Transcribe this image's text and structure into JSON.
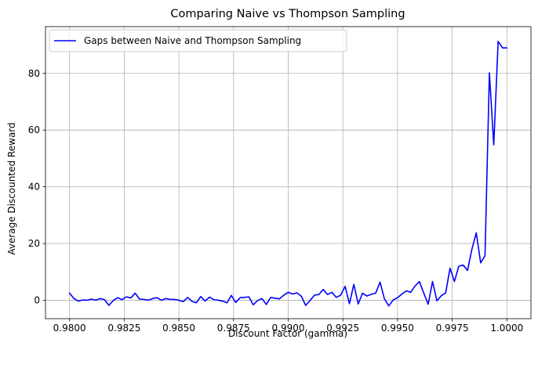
{
  "chart_data": {
    "type": "line",
    "title": "Comparing Naive vs Thompson Sampling",
    "xlabel": "Discount Factor (gamma)",
    "ylabel": "Average Discounted Reward",
    "xlim": [
      0.9789,
      1.0011
    ],
    "ylim": [
      -6.5,
      96.5
    ],
    "xticks": [
      0.98,
      0.9825,
      0.985,
      0.9875,
      0.99,
      0.9925,
      0.995,
      0.9975,
      1.0
    ],
    "xtick_labels": [
      "0.9800",
      "0.9825",
      "0.9850",
      "0.9875",
      "0.9900",
      "0.9925",
      "0.9950",
      "0.9975",
      "1.0000"
    ],
    "yticks": [
      0,
      20,
      40,
      60,
      80
    ],
    "ytick_labels": [
      "0",
      "20",
      "40",
      "60",
      "80"
    ],
    "grid": true,
    "legend_position": "top-left",
    "series": [
      {
        "name": "Gaps between Naive and Thompson Sampling",
        "color": "#0000ff",
        "x": [
          0.98,
          0.9802,
          0.9804,
          0.9806,
          0.9808,
          0.981,
          0.9812,
          0.9814,
          0.9816,
          0.9818,
          0.982,
          0.9822,
          0.9824,
          0.9826,
          0.9828,
          0.983,
          0.9832,
          0.9834,
          0.9836,
          0.9838,
          0.984,
          0.9842,
          0.9844,
          0.9846,
          0.9848,
          0.985,
          0.9852,
          0.9854,
          0.9856,
          0.9858,
          0.986,
          0.9862,
          0.9864,
          0.9866,
          0.9868,
          0.987,
          0.9872,
          0.9874,
          0.9876,
          0.9878,
          0.988,
          0.9882,
          0.9884,
          0.9886,
          0.9888,
          0.989,
          0.9892,
          0.9894,
          0.9896,
          0.9898,
          0.99,
          0.9902,
          0.9904,
          0.9906,
          0.9908,
          0.991,
          0.9912,
          0.9914,
          0.9916,
          0.9918,
          0.992,
          0.9922,
          0.9924,
          0.9926,
          0.9928,
          0.993,
          0.9932,
          0.9934,
          0.9936,
          0.9938,
          0.994,
          0.9942,
          0.9944,
          0.9946,
          0.9948,
          0.995,
          0.9952,
          0.9954,
          0.9956,
          0.9958,
          0.996,
          0.9962,
          0.9964,
          0.9966,
          0.9968,
          0.997,
          0.9972,
          0.9974,
          0.9976,
          0.9978,
          0.998,
          0.9982,
          0.9984,
          0.9986,
          0.9988,
          0.999,
          0.9992,
          0.9994,
          0.9996,
          0.9998,
          1.0
        ],
        "y": [
          2.5,
          0.6,
          -0.3,
          0.1,
          0.0,
          0.4,
          0.0,
          0.6,
          0.2,
          -1.8,
          -0.1,
          0.9,
          0.2,
          1.2,
          0.8,
          2.5,
          0.4,
          0.3,
          0.0,
          0.6,
          0.9,
          0.0,
          0.6,
          0.3,
          0.3,
          0.0,
          -0.5,
          1.0,
          -0.4,
          -0.9,
          1.3,
          -0.3,
          1.1,
          0.2,
          0.0,
          -0.3,
          -0.9,
          1.7,
          -0.8,
          0.9,
          1.0,
          1.2,
          -1.6,
          -0.1,
          0.6,
          -1.5,
          1.0,
          0.7,
          0.5,
          1.8,
          2.8,
          2.2,
          2.6,
          1.4,
          -1.8,
          -0.1,
          1.8,
          2.0,
          3.8,
          2.0,
          2.8,
          1.0,
          1.8,
          4.9,
          -1.2,
          5.6,
          -1.3,
          2.5,
          1.5,
          2.1,
          2.5,
          6.4,
          0.5,
          -2.0,
          0.1,
          0.9,
          2.2,
          3.3,
          2.8,
          5.0,
          6.6,
          2.5,
          -1.4,
          6.6,
          -0.2,
          1.6,
          2.6,
          11.3,
          6.6,
          12.0,
          12.4,
          10.5,
          18.0,
          23.8,
          13.2,
          15.7,
          80.2,
          54.8,
          91.3,
          89.0,
          89.0
        ]
      }
    ]
  }
}
